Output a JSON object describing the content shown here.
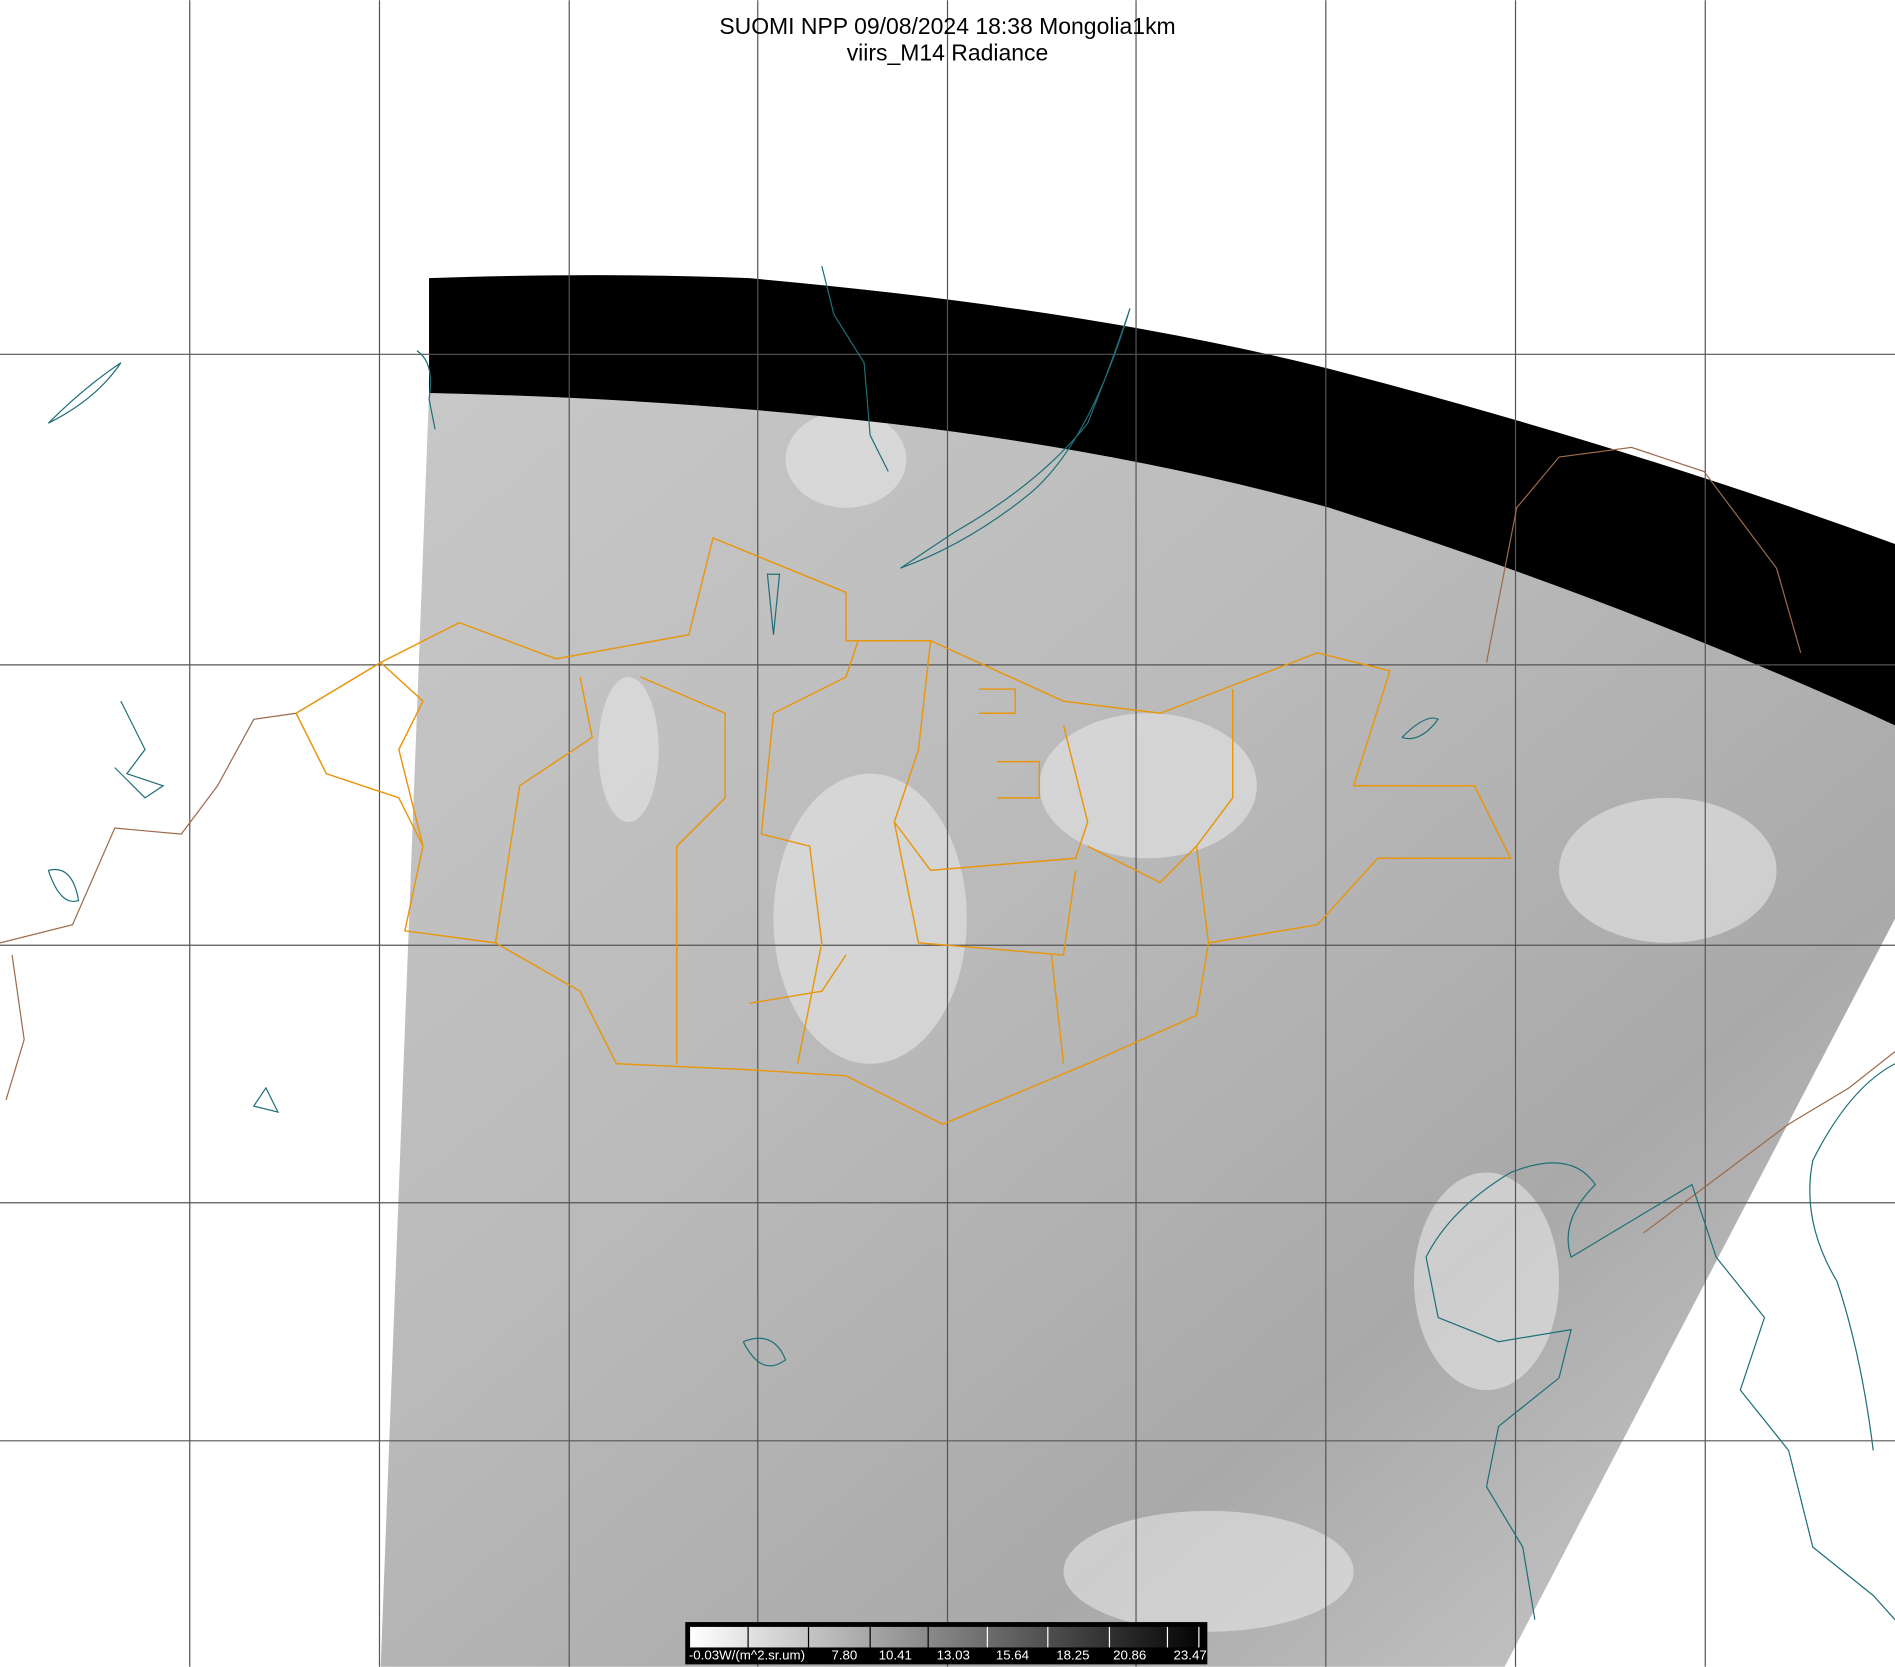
{
  "title": {
    "line1": "SUOMI NPP 09/08/2024 18:38 Mongolia1km",
    "line2": "viirs_M14 Radiance"
  },
  "colorbar": {
    "unit_label": "-0.03W/(m^2.sr.um)",
    "tick_labels": [
      "7.80",
      "10.41",
      "13.03",
      "15.64",
      "18.25",
      "20.86",
      "23.47"
    ],
    "gradient": "white-to-black"
  },
  "colors": {
    "border_admin": "#e8960c",
    "coastline_lakes": "#1f6f78",
    "country_border": "#9c6a4a",
    "grid": "#555555",
    "no_data_band": "#000000"
  }
}
